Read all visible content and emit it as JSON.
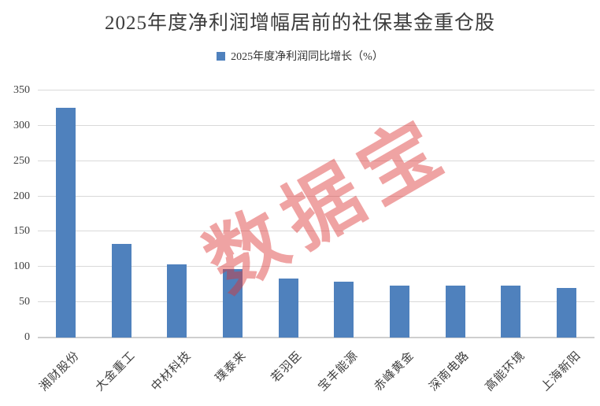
{
  "chart_data": {
    "type": "bar",
    "title": "2025年度净利润增幅居前的社保基金重仓股",
    "series_name": "2025年度净利润同比增长（%）",
    "categories": [
      "湘财股份",
      "大金重工",
      "中材科技",
      "璞泰来",
      "若羽臣",
      "宝丰能源",
      "赤峰黄金",
      "深南电路",
      "高能环境",
      "上海新阳"
    ],
    "values": [
      325,
      133,
      104,
      97,
      84,
      79,
      74,
      74,
      74,
      70
    ],
    "xlabel": "",
    "ylabel": "",
    "ylim": [
      0,
      350
    ],
    "yticks": [
      0,
      50,
      100,
      150,
      200,
      250,
      300,
      350
    ],
    "grid": true,
    "legend_position": "top-center",
    "watermark": "数据宝"
  },
  "colors": {
    "bar": "#4F81BD",
    "gridline": "#D9D9D9",
    "axis_line": "#CFCFCF",
    "title_text": "#3C3C3C",
    "tick_text": "#404040",
    "watermark": "rgba(220,50,50,0.45)",
    "background": "#FFFFFF"
  }
}
